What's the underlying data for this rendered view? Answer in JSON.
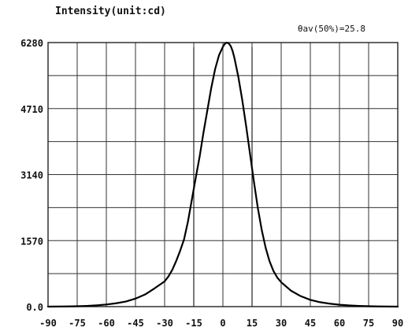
{
  "chart_data": {
    "type": "line",
    "title": "Intensity(unit:cd)",
    "annotation": "θav(50%)=25.8",
    "xlabel": "",
    "ylabel": "",
    "x_ticks": [
      -90,
      -75,
      -60,
      -45,
      -30,
      -15,
      0,
      15,
      30,
      45,
      60,
      75,
      90
    ],
    "y_ticks": [
      0,
      1570,
      3140,
      4710,
      6280
    ],
    "y_tick_labels": [
      "0.0",
      "1570",
      "3140",
      "4710",
      "6280"
    ],
    "xlim": [
      -90,
      90
    ],
    "ylim": [
      0,
      6280
    ],
    "grid": true,
    "vertical_markers": [
      -15,
      15
    ],
    "series": [
      {
        "x": [
          -90,
          -85,
          -80,
          -75,
          -70,
          -65,
          -60,
          -55,
          -50,
          -45,
          -40,
          -35,
          -30,
          -28,
          -26,
          -24,
          -22,
          -20,
          -18,
          -16,
          -14,
          -12,
          -10,
          -8,
          -6,
          -4,
          -2,
          0,
          1,
          2,
          3,
          4,
          5,
          6,
          8,
          10,
          12,
          14,
          16,
          18,
          20,
          22,
          24,
          26,
          28,
          30,
          35,
          40,
          45,
          50,
          55,
          60,
          65,
          70,
          75,
          80,
          85,
          90
        ],
        "y": [
          0,
          2,
          5,
          10,
          18,
          30,
          50,
          80,
          120,
          190,
          290,
          440,
          600,
          720,
          880,
          1090,
          1330,
          1600,
          2020,
          2540,
          3060,
          3560,
          4140,
          4670,
          5200,
          5650,
          5980,
          6180,
          6250,
          6280,
          6260,
          6200,
          6080,
          5900,
          5450,
          4900,
          4280,
          3620,
          2960,
          2340,
          1820,
          1400,
          1080,
          850,
          690,
          580,
          380,
          250,
          160,
          105,
          70,
          45,
          28,
          16,
          9,
          5,
          2,
          0
        ]
      }
    ]
  }
}
